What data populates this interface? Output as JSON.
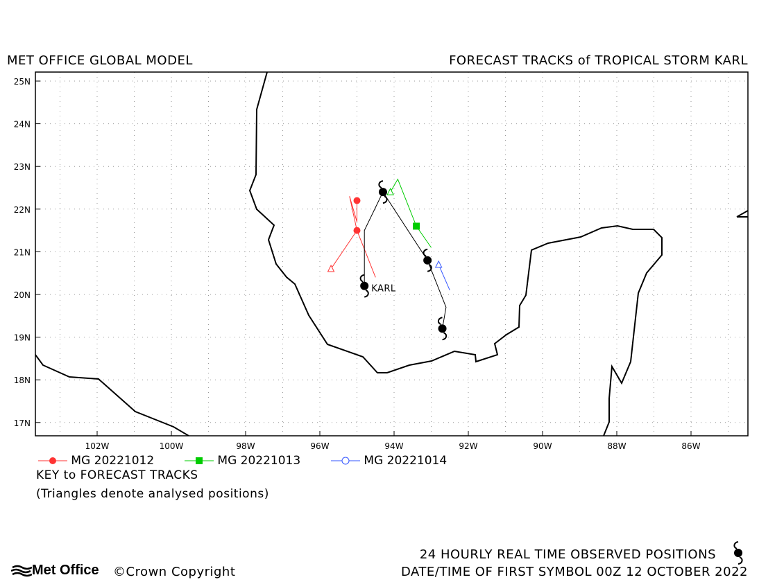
{
  "header": {
    "left_title": "MET OFFICE GLOBAL MODEL",
    "right_title": "FORECAST TRACKS of TROPICAL STORM KARL"
  },
  "map": {
    "lon_labels": [
      "102W",
      "100W",
      "98W",
      "96W",
      "94W",
      "92W",
      "90W",
      "88W",
      "86W"
    ],
    "lat_labels": [
      "25N",
      "24N",
      "23N",
      "22N",
      "21N",
      "20N",
      "19N",
      "18N",
      "17N"
    ],
    "grid": true,
    "storm_label": "KARL",
    "colors": {
      "coast": "#000000",
      "mg_20221012": "#ff3333",
      "mg_20221013": "#00cc00",
      "mg_20221014": "#3355ff",
      "observed": "#000000"
    },
    "observed_track": [
      [
        -94.8,
        20.2
      ],
      [
        -94.8,
        21.5
      ],
      [
        -94.3,
        22.4
      ],
      [
        -94.0,
        22.0
      ],
      [
        -93.1,
        20.8
      ],
      [
        -92.6,
        19.7
      ],
      [
        -92.7,
        19.2
      ]
    ],
    "observed_symbols": [
      [
        -94.8,
        20.2
      ],
      [
        -94.3,
        22.4
      ],
      [
        -93.1,
        20.8
      ],
      [
        -92.7,
        19.2
      ]
    ],
    "forecast_tracks": [
      {
        "id": "mg_20221012",
        "analysis": [
          -95.7,
          20.6
        ],
        "points": [
          [
            -95.0,
            21.5
          ],
          [
            -95.0,
            22.2
          ]
        ],
        "path": [
          [
            -95.7,
            20.6
          ],
          [
            -95.0,
            21.5
          ],
          [
            -94.5,
            20.4
          ]
        ],
        "path2": [
          [
            -95.0,
            21.5
          ],
          [
            -95.2,
            22.3
          ],
          [
            -95.0,
            21.7
          ],
          [
            -95.0,
            22.2
          ]
        ]
      },
      {
        "id": "mg_20221013",
        "analysis": [
          -94.1,
          22.4
        ],
        "points": [
          [
            -93.4,
            21.6
          ]
        ],
        "path": [
          [
            -94.1,
            22.4
          ],
          [
            -93.9,
            22.7
          ],
          [
            -93.4,
            21.6
          ],
          [
            -93.0,
            21.1
          ]
        ]
      },
      {
        "id": "mg_20221014",
        "analysis": [
          -92.8,
          20.7
        ],
        "points": [],
        "path": [
          [
            -92.8,
            20.7
          ],
          [
            -92.5,
            20.1
          ]
        ]
      }
    ]
  },
  "legend": {
    "items": [
      {
        "label": "MG 20221012",
        "color": "#ff3333",
        "marker": "circle-filled"
      },
      {
        "label": "MG 20221013",
        "color": "#00cc00",
        "marker": "square-filled"
      },
      {
        "label": "MG 20221014",
        "color": "#3355ff",
        "marker": "circle-open"
      }
    ],
    "key_title": "KEY to FORECAST TRACKS",
    "key_note": "(Triangles denote analysed positions)"
  },
  "footer": {
    "logo_text": "Met Office",
    "copyright": "Crown Copyright",
    "observed_text": "24 HOURLY REAL TIME OBSERVED POSITIONS",
    "date_text": "DATE/TIME OF FIRST SYMBOL 00Z 12 OCTOBER 2022"
  }
}
